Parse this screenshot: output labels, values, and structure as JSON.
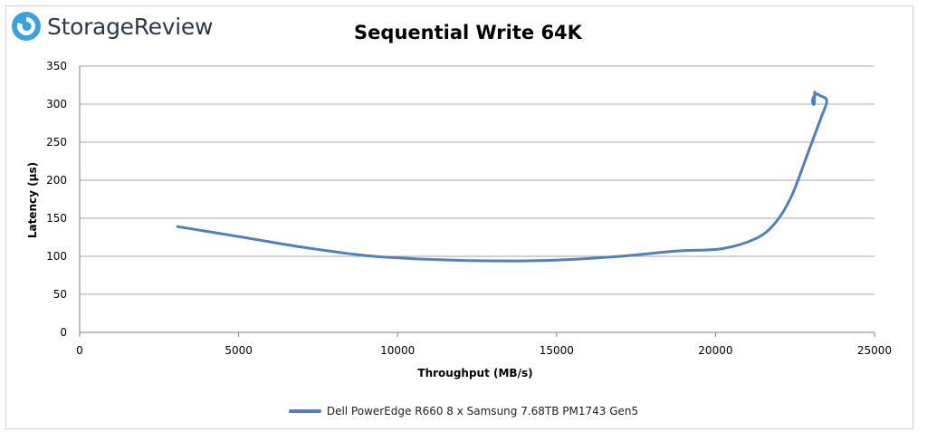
{
  "brand": {
    "name": "StorageReview",
    "accent": "#3aa3dc",
    "icon": "storagereview-logo-icon"
  },
  "chart_data": {
    "type": "line",
    "title": "Sequential Write 64K",
    "xlabel": "Throughput (MB/s)",
    "ylabel": "Latency (µs)",
    "xlim": [
      0,
      25000
    ],
    "ylim": [
      0,
      350
    ],
    "xticks": [
      0,
      5000,
      10000,
      15000,
      20000,
      25000
    ],
    "yticks": [
      0,
      50,
      100,
      150,
      200,
      250,
      300,
      350
    ],
    "grid": "horizontal",
    "legend_position": "bottom",
    "series": [
      {
        "name": "Dell PowerEdge R660 8 x Samsung 7.68TB PM1743 Gen5",
        "color": "#4f81bd",
        "points": [
          [
            3080,
            139
          ],
          [
            5000,
            126
          ],
          [
            7000,
            112
          ],
          [
            9000,
            101
          ],
          [
            11000,
            96
          ],
          [
            13000,
            94
          ],
          [
            15000,
            95
          ],
          [
            17000,
            100
          ],
          [
            18800,
            107
          ],
          [
            20200,
            110
          ],
          [
            21300,
            124
          ],
          [
            21900,
            145
          ],
          [
            22400,
            180
          ],
          [
            22900,
            235
          ],
          [
            23300,
            280
          ],
          [
            23500,
            304
          ],
          [
            23300,
            311
          ],
          [
            23150,
            313
          ],
          [
            23050,
            305
          ],
          [
            23100,
            300
          ],
          [
            23120,
            316
          ]
        ]
      }
    ]
  }
}
